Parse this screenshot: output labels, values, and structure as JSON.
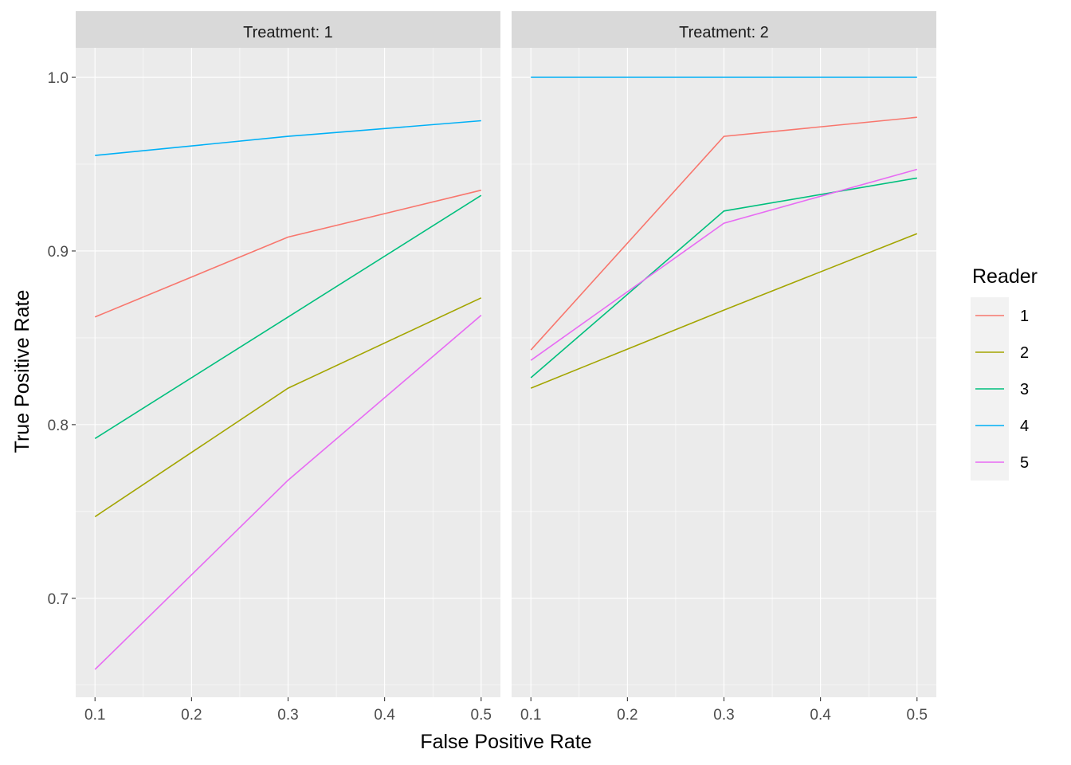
{
  "chart_data": {
    "type": "line",
    "xlabel": "False Positive Rate",
    "ylabel": "True Positive Rate",
    "x_ticks": [
      "0.1",
      "0.2",
      "0.3",
      "0.4",
      "0.5"
    ],
    "y_ticks": [
      "0.7",
      "0.8",
      "0.9",
      "1.0"
    ],
    "xlim": [
      0.08,
      0.52
    ],
    "ylim": [
      0.643,
      1.017
    ],
    "grid": true,
    "legend": {
      "title": "Reader",
      "placement": "right",
      "entries": [
        "1",
        "2",
        "3",
        "4",
        "5"
      ]
    },
    "colors": {
      "1": "#F8766D",
      "2": "#A3A500",
      "3": "#00BF7D",
      "4": "#00B0F6",
      "5": "#E76BF3"
    },
    "panels": [
      {
        "strip": "Treatment: 1",
        "series": [
          {
            "name": "1",
            "x": [
              0.1,
              0.3,
              0.5
            ],
            "y": [
              0.862,
              0.908,
              0.935
            ]
          },
          {
            "name": "2",
            "x": [
              0.1,
              0.3,
              0.5
            ],
            "y": [
              0.747,
              0.821,
              0.873
            ]
          },
          {
            "name": "3",
            "x": [
              0.1,
              0.3,
              0.5
            ],
            "y": [
              0.792,
              0.862,
              0.932
            ]
          },
          {
            "name": "4",
            "x": [
              0.1,
              0.3,
              0.5
            ],
            "y": [
              0.955,
              0.966,
              0.975
            ]
          },
          {
            "name": "5",
            "x": [
              0.1,
              0.3,
              0.5
            ],
            "y": [
              0.659,
              0.768,
              0.863
            ]
          }
        ]
      },
      {
        "strip": "Treatment: 2",
        "series": [
          {
            "name": "1",
            "x": [
              0.1,
              0.3,
              0.5
            ],
            "y": [
              0.843,
              0.966,
              0.977
            ]
          },
          {
            "name": "2",
            "x": [
              0.1,
              0.3,
              0.5
            ],
            "y": [
              0.821,
              0.866,
              0.91
            ]
          },
          {
            "name": "3",
            "x": [
              0.1,
              0.3,
              0.5
            ],
            "y": [
              0.827,
              0.923,
              0.942
            ]
          },
          {
            "name": "4",
            "x": [
              0.1,
              0.3,
              0.5
            ],
            "y": [
              1.0,
              1.0,
              1.0
            ]
          },
          {
            "name": "5",
            "x": [
              0.1,
              0.3,
              0.5
            ],
            "y": [
              0.837,
              0.916,
              0.947
            ]
          }
        ]
      }
    ]
  }
}
